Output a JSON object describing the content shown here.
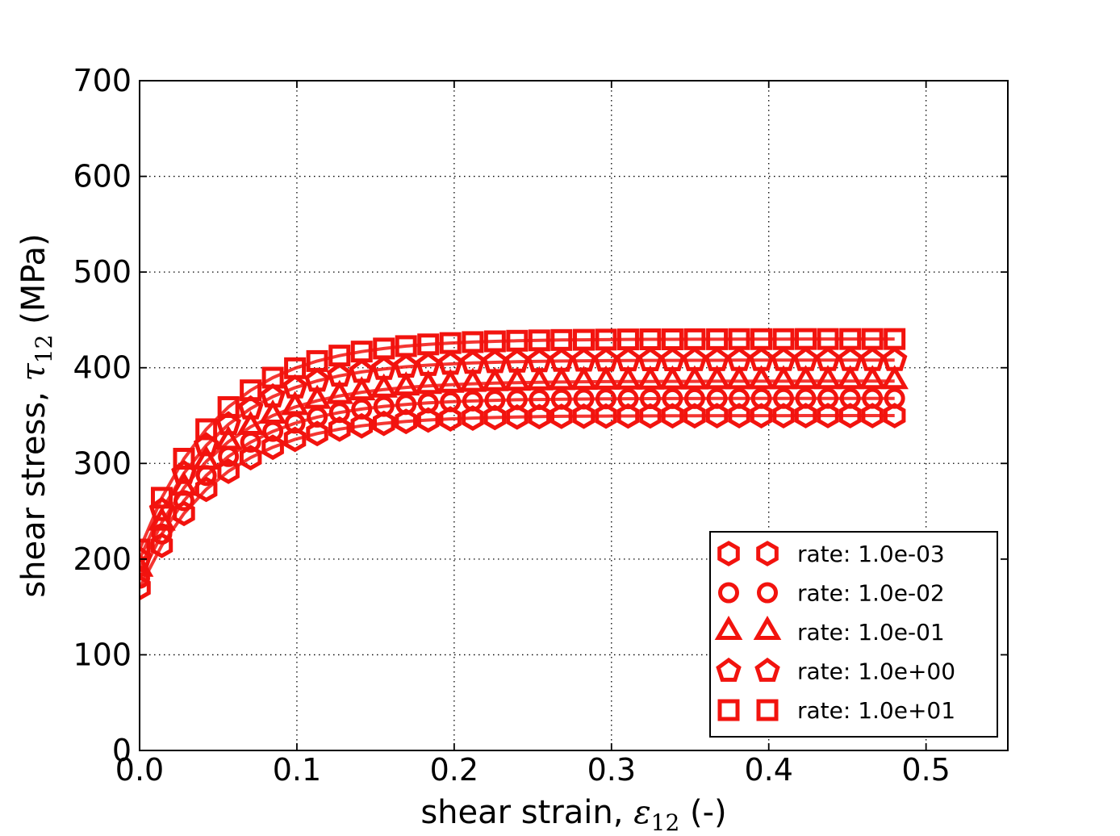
{
  "figure": {
    "background": "#ffffff",
    "accent_red": "#f2130e",
    "text_color": "#000000"
  },
  "chart_data": {
    "type": "line",
    "title": "",
    "xlabel_parts": {
      "prefix": "shear strain, ",
      "symbol": "ε",
      "subscript": "12",
      "suffix": " (-)"
    },
    "ylabel_parts": {
      "prefix": "shear stress, ",
      "symbol": "τ",
      "subscript": "12",
      "suffix": " (MPa)"
    },
    "xlabel_plain": "shear strain, ε₁₂ (-)",
    "ylabel_plain": "shear stress, τ₁₂ (MPa)",
    "xlim": [
      0,
      0.552
    ],
    "ylim": [
      0,
      700
    ],
    "grid": "dotted",
    "grid_color": "#000000",
    "x_ticks": {
      "values": [
        0,
        0.1,
        0.2,
        0.3,
        0.4,
        0.5
      ],
      "labels": [
        "0.0",
        "0.1",
        "0.2",
        "0.3",
        "0.4",
        "0.5"
      ]
    },
    "y_ticks": {
      "values": [
        0,
        100,
        200,
        300,
        400,
        500,
        600,
        700
      ],
      "labels": [
        "0",
        "100",
        "200",
        "300",
        "400",
        "500",
        "600",
        "700"
      ]
    },
    "legend": {
      "position": "lower right",
      "marker_repeat": 2
    },
    "x": [
      0,
      0.0141,
      0.0282,
      0.0424,
      0.0565,
      0.0706,
      0.0847,
      0.0988,
      0.1129,
      0.1271,
      0.1412,
      0.1553,
      0.1694,
      0.1835,
      0.1976,
      0.2118,
      0.2259,
      0.24,
      0.2541,
      0.2682,
      0.2824,
      0.2965,
      0.3106,
      0.3247,
      0.3388,
      0.3529,
      0.3671,
      0.3812,
      0.3953,
      0.4094,
      0.4235,
      0.4376,
      0.4518,
      0.4659,
      0.48
    ],
    "series": [
      {
        "name": "rate: 1.0e-03",
        "marker": "hexagon",
        "color": "#f2130e",
        "values": [
          170,
          214.3,
          247.7,
          272.9,
          291.8,
          306.1,
          316.9,
          325.1,
          331.2,
          335.8,
          339.3,
          341.9,
          343.9,
          345.4,
          346.5,
          347.4,
          348.0,
          348.5,
          348.9,
          349.2,
          349.4,
          349.5,
          349.6,
          349.7,
          349.8,
          349.8,
          349.9,
          349.9,
          349.9,
          349.9,
          350.0,
          350.0,
          350.0,
          350.0,
          350.0
        ]
      },
      {
        "name": "rate: 1.0e-02",
        "marker": "circle",
        "color": "#f2130e",
        "values": [
          180,
          226.2,
          261.1,
          287.4,
          307.2,
          322.2,
          333.5,
          342.0,
          348.4,
          353.2,
          356.8,
          359.6,
          361.6,
          363.2,
          364.4,
          365.3,
          365.9,
          366.5,
          366.8,
          367.1,
          367.3,
          367.5,
          367.6,
          367.7,
          367.8,
          367.8,
          367.9,
          367.9,
          367.9,
          367.9,
          368.0,
          368.0,
          368.0,
          368.0,
          368.0
        ]
      },
      {
        "name": "rate: 1.0e-01",
        "marker": "triangle-up",
        "color": "#f2130e",
        "values": [
          190,
          238.2,
          274.6,
          302.0,
          322.7,
          338.2,
          350.0,
          358.9,
          365.5,
          370.6,
          374.4,
          377.2,
          379.4,
          381.0,
          382.2,
          383.2,
          383.9,
          384.4,
          384.8,
          385.1,
          385.3,
          385.5,
          385.6,
          385.7,
          385.8,
          385.8,
          385.9,
          385.9,
          385.9,
          385.9,
          386.0,
          386.0,
          386.0,
          386.0,
          386.0
        ]
      },
      {
        "name": "rate: 1.0e+00",
        "marker": "pentagon",
        "color": "#f2130e",
        "values": [
          200,
          251.2,
          289.8,
          318.8,
          340.8,
          357.3,
          369.8,
          379.2,
          386.3,
          391.6,
          395.6,
          398.7,
          401.0,
          402.7,
          404.0,
          405.0,
          405.7,
          406.3,
          406.7,
          407.0,
          407.3,
          407.4,
          407.6,
          407.7,
          407.7,
          407.8,
          407.8,
          407.9,
          407.9,
          407.9,
          408.0,
          408.0,
          408.0,
          408.0,
          408.0
        ]
      },
      {
        "name": "rate: 1.0e+01",
        "marker": "square",
        "color": "#f2130e",
        "values": [
          210,
          264.1,
          304.9,
          335.7,
          358.9,
          376.4,
          389.6,
          399.5,
          407.0,
          412.7,
          416.9,
          420.1,
          422.6,
          424.4,
          425.8,
          426.8,
          427.6,
          428.2,
          428.6,
          429.0,
          429.2,
          429.4,
          429.6,
          429.7,
          429.7,
          429.8,
          429.8,
          429.9,
          429.9,
          429.9,
          430.0,
          430.0,
          430.0,
          430.0,
          430.0
        ]
      }
    ]
  }
}
